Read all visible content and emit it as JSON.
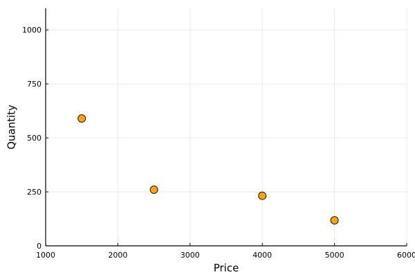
{
  "chart_data": {
    "type": "scatter",
    "title": "",
    "xlabel": "Price",
    "ylabel": "Quantity",
    "xlim": [
      1000,
      6000
    ],
    "ylim": [
      0,
      1100
    ],
    "xticks": [
      1000,
      2000,
      3000,
      4000,
      5000,
      6000
    ],
    "yticks": [
      0,
      250,
      500,
      750,
      1000
    ],
    "grid": true,
    "legend": "none",
    "marker_color": "#ffa500",
    "marker_edge_color": "#000000",
    "points": [
      {
        "x": 1500,
        "y": 590
      },
      {
        "x": 2500,
        "y": 260
      },
      {
        "x": 4000,
        "y": 232
      },
      {
        "x": 5000,
        "y": 118
      }
    ]
  }
}
